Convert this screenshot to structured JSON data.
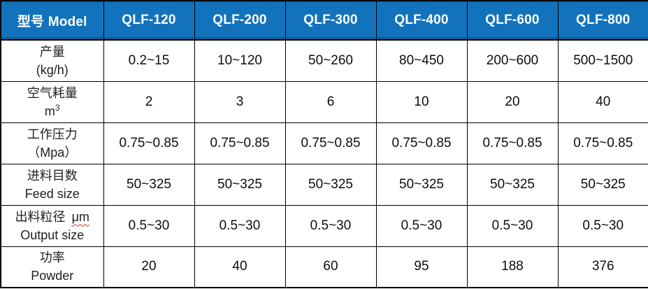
{
  "table": {
    "header": {
      "model_label": "型号 Model",
      "columns": [
        "QLF-120",
        "QLF-200",
        "QLF-300",
        "QLF-400",
        "QLF-600",
        "QLF-800"
      ]
    },
    "rows": [
      {
        "label_line1": "产量",
        "label_line2": "(kg/h)",
        "values": [
          "0.2~15",
          "10~120",
          "50~260",
          "80~450",
          "200~600",
          "500~1500"
        ]
      },
      {
        "label_line1": "空气耗量",
        "unit_base": "m",
        "unit_sup": "3",
        "values": [
          "2",
          "3",
          "6",
          "10",
          "20",
          "40"
        ]
      },
      {
        "label_line1": "工作压力",
        "label_line2": "（Mpa）",
        "values": [
          "0.75~0.85",
          "0.75~0.85",
          "0.75~0.85",
          "0.75~0.85",
          "0.75~0.85",
          "0.75~0.85"
        ]
      },
      {
        "label_line1": "进料目数",
        "label_line2": "Feed size",
        "values": [
          "50~325",
          "50~325",
          "50~325",
          "50~325",
          "50~325",
          "50~325"
        ]
      },
      {
        "label_line1": "出料粒径",
        "label_unit": "μm",
        "label_line2": "Output size",
        "values": [
          "0.5~30",
          "0.5~30",
          "0.5~30",
          "0.5~30",
          "0.5~30",
          "0.5~30"
        ]
      },
      {
        "label_line1": "功率",
        "label_line2": "Powder",
        "values": [
          "20",
          "40",
          "60",
          "95",
          "188",
          "376"
        ]
      }
    ]
  },
  "colors": {
    "header_bg": "#1272BC",
    "header_text": "#FFFFFF",
    "border": "#000000",
    "cell_text": "#0D0D0D",
    "spellcheck_wavy": "#D93025"
  }
}
